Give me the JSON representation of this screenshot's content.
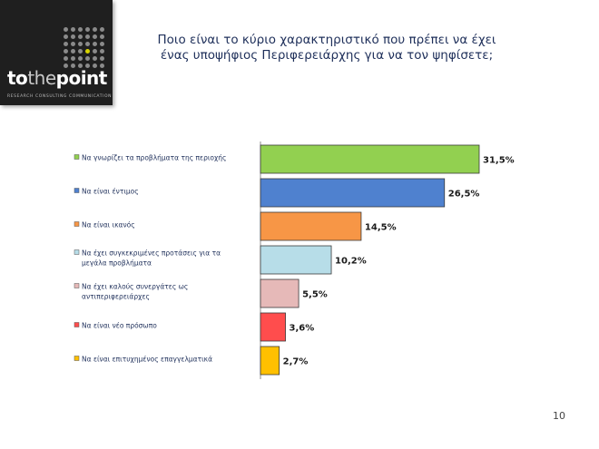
{
  "header": {
    "logo": {
      "word_a": "to",
      "word_b": "the",
      "word_c": "point",
      "tagline": "RESEARCH  CONSULTING  COMMUNICATION"
    },
    "title_line1": "Ποιο είναι το κύριο χαρακτηριστικό που πρέπει να έχει",
    "title_line2": "ένας υποψήφιος Περιφερειάρχης για να τον ψηφίσετε;"
  },
  "page_number": "10",
  "colors": {
    "logo_bg": "#1f1f1f",
    "logo_accent": "#d8d400",
    "title": "#1e2f5a",
    "bar_border": "#3a3a3a"
  },
  "chart_data": {
    "type": "bar",
    "orientation": "horizontal",
    "categories": [
      [
        "Να γνωρίζει τα προβλήματα της περιοχής"
      ],
      [
        "Να είναι έντιμος"
      ],
      [
        "Να είναι ικανός"
      ],
      [
        "Να έχει συγκεκριμένες προτάσεις για τα",
        "μεγάλα προβλήματα"
      ],
      [
        "Να έχει καλούς συνεργάτες ως",
        "αντιπεριφερειάρχες"
      ],
      [
        "Να είναι νέο πρόσωπο"
      ],
      [
        "Να είναι επιτυχημένος επαγγελματικά"
      ]
    ],
    "values": [
      31.5,
      26.5,
      14.5,
      10.2,
      5.5,
      3.6,
      2.7
    ],
    "value_labels": [
      "31,5%",
      "26,5%",
      "14,5%",
      "10,2%",
      "5,5%",
      "3,6%",
      "2,7%"
    ],
    "colors": [
      "#92d050",
      "#4f81cf",
      "#f79646",
      "#b7dde8",
      "#e6b9b8",
      "#ff4d4d",
      "#ffc000"
    ],
    "xlim": [
      0,
      31.5
    ],
    "grid": false,
    "legend": "left (markers beside category labels)"
  }
}
